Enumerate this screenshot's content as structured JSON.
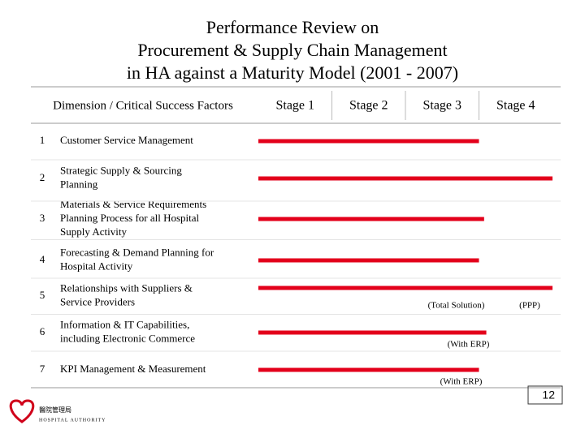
{
  "chart_data": {
    "type": "bar",
    "title": [
      "Performance Review on",
      "Procurement & Supply Chain Management",
      "in HA against a Maturity Model (2001 - 2007)"
    ],
    "dimension_header": "Dimension / Critical Success Factors",
    "stages": [
      "Stage 1",
      "Stage 2",
      "Stage 3",
      "Stage 4"
    ],
    "row_numbers": [
      "1",
      "2",
      "3",
      "4",
      "5",
      "6",
      "7"
    ],
    "categories": [
      [
        "Customer Service Management"
      ],
      [
        "Strategic Supply & Sourcing",
        "Planning"
      ],
      [
        "Materials & Service Requirements",
        "Planning Process for all Hospital",
        "Supply Activity"
      ],
      [
        "Forecasting & Demand Planning for",
        "Hospital Activity"
      ],
      [
        "Relationships with Suppliers &",
        "Service Providers"
      ],
      [
        "Information & IT Capabilities,",
        "including Electronic Commerce"
      ],
      [
        "KPI Management & Measurement"
      ]
    ],
    "values": [
      3.0,
      4.0,
      3.07,
      3.0,
      4.0,
      3.1,
      3.0
    ],
    "annotations": [
      null,
      null,
      null,
      null,
      [
        "(Total Solution)",
        "(PPP)"
      ],
      [
        "(With ERP)"
      ],
      [
        "(With ERP)"
      ]
    ],
    "color": "#e3001b",
    "xlim": [
      0,
      4
    ]
  },
  "footer": {
    "logo_chinese": "醫院管理局",
    "logo_english": "HOSPITAL AUTHORITY",
    "page_number": "12"
  }
}
